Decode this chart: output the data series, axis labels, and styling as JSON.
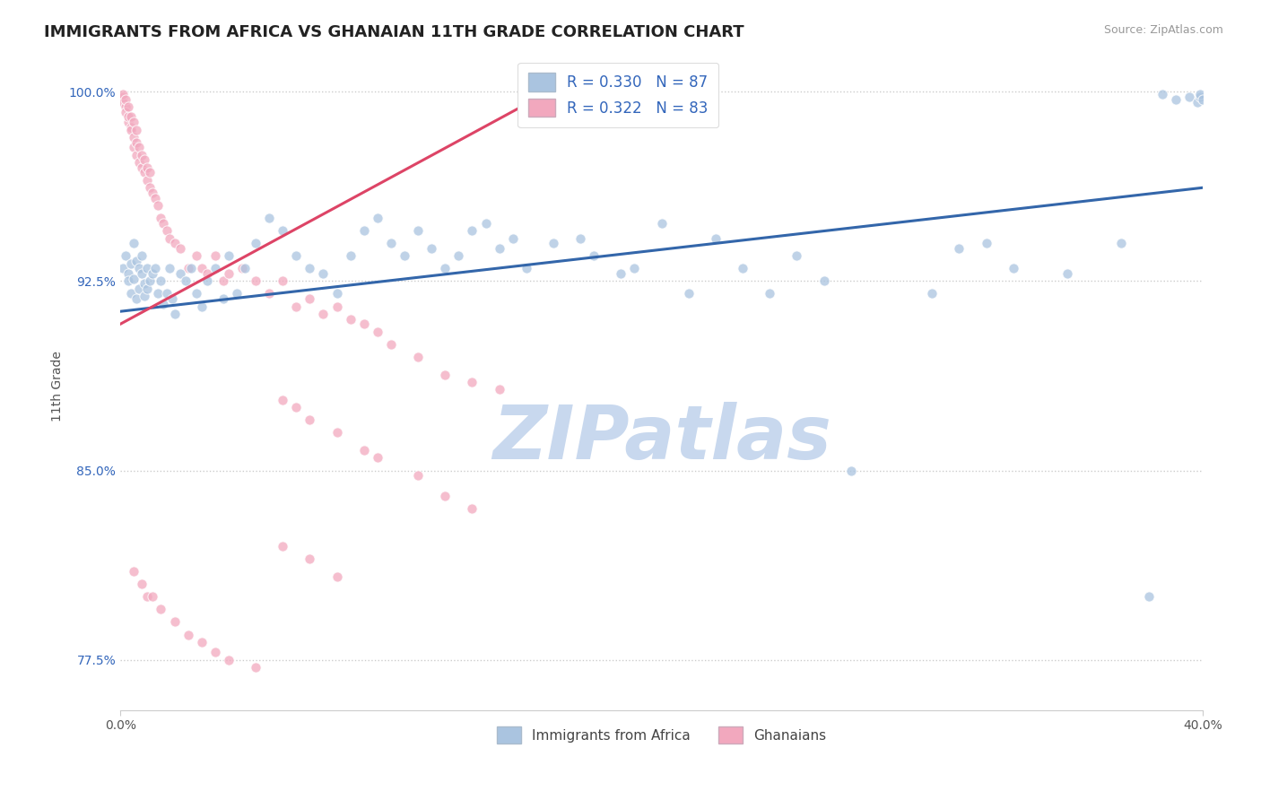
{
  "title": "IMMIGRANTS FROM AFRICA VS GHANAIAN 11TH GRADE CORRELATION CHART",
  "source_text": "Source: ZipAtlas.com",
  "ylabel": "11th Grade",
  "x_min": 0.0,
  "x_max": 0.4,
  "y_min": 0.755,
  "y_max": 1.012,
  "x_ticks": [
    0.0,
    0.4
  ],
  "x_tick_labels": [
    "0.0%",
    "40.0%"
  ],
  "y_ticks": [
    0.775,
    0.85,
    0.925,
    1.0
  ],
  "y_tick_labels": [
    "77.5%",
    "85.0%",
    "92.5%",
    "100.0%"
  ],
  "legend_entries": [
    {
      "label": "R = 0.330   N = 87",
      "color": "#aac8e8"
    },
    {
      "label": "R = 0.322   N = 83",
      "color": "#f4b8cc"
    }
  ],
  "legend_bottom_entries": [
    {
      "label": "Immigrants from Africa",
      "color": "#aac8e8"
    },
    {
      "label": "Ghanaians",
      "color": "#f4b8cc"
    }
  ],
  "blue_scatter_x": [
    0.001,
    0.002,
    0.003,
    0.003,
    0.004,
    0.004,
    0.005,
    0.005,
    0.006,
    0.006,
    0.007,
    0.007,
    0.008,
    0.008,
    0.009,
    0.009,
    0.01,
    0.01,
    0.011,
    0.012,
    0.013,
    0.014,
    0.015,
    0.016,
    0.017,
    0.018,
    0.019,
    0.02,
    0.022,
    0.024,
    0.026,
    0.028,
    0.03,
    0.032,
    0.035,
    0.038,
    0.04,
    0.043,
    0.046,
    0.05,
    0.055,
    0.06,
    0.065,
    0.07,
    0.075,
    0.08,
    0.085,
    0.09,
    0.095,
    0.1,
    0.105,
    0.11,
    0.115,
    0.12,
    0.125,
    0.13,
    0.135,
    0.14,
    0.145,
    0.15,
    0.16,
    0.17,
    0.175,
    0.185,
    0.19,
    0.2,
    0.21,
    0.22,
    0.23,
    0.24,
    0.25,
    0.26,
    0.27,
    0.3,
    0.31,
    0.32,
    0.33,
    0.35,
    0.37,
    0.38,
    0.385,
    0.39,
    0.395,
    0.398,
    0.399,
    0.399,
    0.4
  ],
  "blue_scatter_y": [
    0.93,
    0.935,
    0.928,
    0.925,
    0.932,
    0.92,
    0.926,
    0.94,
    0.933,
    0.918,
    0.922,
    0.93,
    0.935,
    0.928,
    0.924,
    0.919,
    0.93,
    0.922,
    0.925,
    0.928,
    0.93,
    0.92,
    0.925,
    0.916,
    0.92,
    0.93,
    0.918,
    0.912,
    0.928,
    0.925,
    0.93,
    0.92,
    0.915,
    0.925,
    0.93,
    0.918,
    0.935,
    0.92,
    0.93,
    0.94,
    0.95,
    0.945,
    0.935,
    0.93,
    0.928,
    0.92,
    0.935,
    0.945,
    0.95,
    0.94,
    0.935,
    0.945,
    0.938,
    0.93,
    0.935,
    0.945,
    0.948,
    0.938,
    0.942,
    0.93,
    0.94,
    0.942,
    0.935,
    0.928,
    0.93,
    0.948,
    0.92,
    0.942,
    0.93,
    0.92,
    0.935,
    0.925,
    0.85,
    0.92,
    0.938,
    0.94,
    0.93,
    0.928,
    0.94,
    0.8,
    0.999,
    0.997,
    0.998,
    0.996,
    0.998,
    0.999,
    0.997
  ],
  "pink_scatter_x": [
    0.001,
    0.001,
    0.001,
    0.002,
    0.002,
    0.002,
    0.003,
    0.003,
    0.003,
    0.004,
    0.004,
    0.004,
    0.005,
    0.005,
    0.005,
    0.006,
    0.006,
    0.006,
    0.007,
    0.007,
    0.008,
    0.008,
    0.009,
    0.009,
    0.01,
    0.01,
    0.011,
    0.011,
    0.012,
    0.013,
    0.014,
    0.015,
    0.016,
    0.017,
    0.018,
    0.02,
    0.022,
    0.025,
    0.028,
    0.03,
    0.032,
    0.035,
    0.038,
    0.04,
    0.045,
    0.05,
    0.055,
    0.06,
    0.065,
    0.07,
    0.075,
    0.08,
    0.085,
    0.09,
    0.095,
    0.1,
    0.11,
    0.12,
    0.13,
    0.14,
    0.06,
    0.065,
    0.07,
    0.08,
    0.09,
    0.095,
    0.11,
    0.12,
    0.13,
    0.005,
    0.008,
    0.01,
    0.012,
    0.015,
    0.02,
    0.025,
    0.03,
    0.035,
    0.04,
    0.05,
    0.06,
    0.07,
    0.08
  ],
  "pink_scatter_y": [
    0.998,
    0.996,
    0.999,
    0.994,
    0.997,
    0.992,
    0.988,
    0.99,
    0.994,
    0.986,
    0.99,
    0.985,
    0.982,
    0.988,
    0.978,
    0.98,
    0.975,
    0.985,
    0.978,
    0.972,
    0.975,
    0.97,
    0.968,
    0.973,
    0.965,
    0.97,
    0.962,
    0.968,
    0.96,
    0.958,
    0.955,
    0.95,
    0.948,
    0.945,
    0.942,
    0.94,
    0.938,
    0.93,
    0.935,
    0.93,
    0.928,
    0.935,
    0.925,
    0.928,
    0.93,
    0.925,
    0.92,
    0.925,
    0.915,
    0.918,
    0.912,
    0.915,
    0.91,
    0.908,
    0.905,
    0.9,
    0.895,
    0.888,
    0.885,
    0.882,
    0.878,
    0.875,
    0.87,
    0.865,
    0.858,
    0.855,
    0.848,
    0.84,
    0.835,
    0.81,
    0.805,
    0.8,
    0.8,
    0.795,
    0.79,
    0.785,
    0.782,
    0.778,
    0.775,
    0.772,
    0.82,
    0.815,
    0.808
  ],
  "blue_line_x": [
    0.0,
    0.4
  ],
  "blue_line_y": [
    0.913,
    0.962
  ],
  "pink_line_x": [
    0.0,
    0.155
  ],
  "pink_line_y": [
    0.908,
    0.998
  ],
  "scatter_color_blue": "#aac4e0",
  "scatter_color_pink": "#f2a8be",
  "line_color_blue": "#3366aa",
  "line_color_pink": "#dd4466",
  "grid_color": "#cccccc",
  "title_fontsize": 13,
  "axis_label_fontsize": 10,
  "tick_fontsize": 10,
  "legend_fontsize": 12,
  "watermark_text": "ZIPatlas",
  "watermark_color": "#c8d8ee",
  "watermark_fontsize": 60
}
